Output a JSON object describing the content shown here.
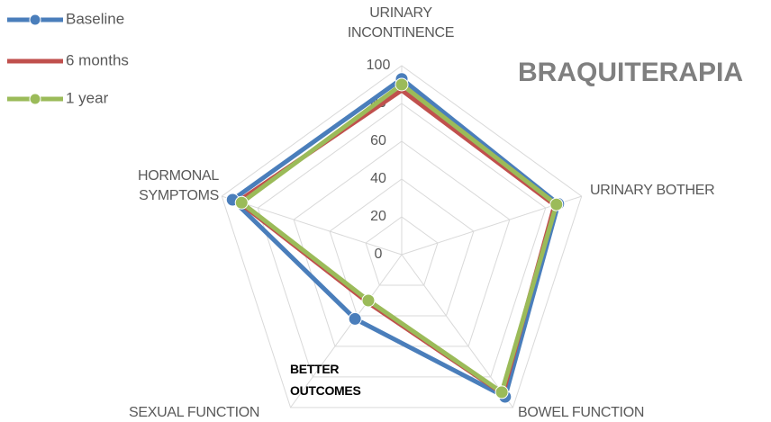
{
  "chart_data": {
    "type": "radar",
    "title": "BRAQUITERAPIA",
    "annotation": "BETTER OUTCOMES",
    "categories": [
      "URINARY INCONTINENCE",
      "URINARY BOTHER",
      "BOWEL FUNCTION",
      "SEXUAL FUNCTION",
      "HORMONAL SYMPTOMS"
    ],
    "series": [
      {
        "name": "Baseline",
        "color": "#4a7ebb",
        "markers": true,
        "values": [
          93,
          87,
          93,
          42,
          94
        ]
      },
      {
        "name": "6 months",
        "color": "#c0504d",
        "markers": false,
        "values": [
          87,
          85,
          91,
          31,
          91
        ]
      },
      {
        "name": "1 year",
        "color": "#9bbb59",
        "markers": true,
        "values": [
          90,
          86,
          90,
          30,
          89
        ]
      }
    ],
    "rlim": [
      0,
      100
    ],
    "rticks": [
      0,
      20,
      40,
      60,
      80,
      100
    ],
    "grid": true,
    "legend": "top-left"
  }
}
